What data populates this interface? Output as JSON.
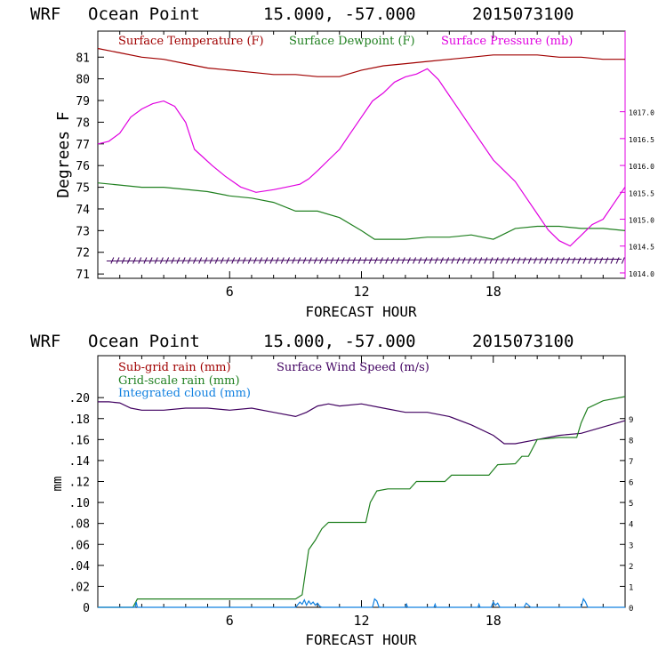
{
  "colors": {
    "dark_red": "#a00000",
    "green": "#208020",
    "magenta": "#e000e0",
    "purple": "#400060",
    "blue": "#1080e0",
    "axis": "#000000"
  },
  "chart_data": [
    {
      "type": "line",
      "title_model": "WRF",
      "title_location": "Ocean Point",
      "title_coords": "15.000, -57.000",
      "title_date": "2015073100",
      "xlabel": "FORECAST HOUR",
      "ylabel": "Degrees F",
      "xlim": [
        0,
        24
      ],
      "ylim": [
        70.8,
        82.2
      ],
      "x_ticks": [
        6,
        12,
        18
      ],
      "y_ticks": [
        71,
        72,
        73,
        74,
        75,
        76,
        77,
        78,
        79,
        80,
        81
      ],
      "y2lim": [
        1013.9,
        1018.5
      ],
      "y2_ticks": [
        "1014.0",
        "1014.5",
        "1015.0",
        "1015.5",
        "1016.0",
        "1016.5",
        "1017.0"
      ],
      "legend": [
        "Surface Temperature (F)",
        "Surface Dewpoint (F)",
        "Surface Pressure (mb)"
      ],
      "series": [
        {
          "name": "Surface Temperature (F)",
          "color": "#a00000",
          "axis": "left",
          "x": [
            0,
            1,
            2,
            3,
            4,
            5,
            6,
            7,
            8,
            9,
            10,
            11,
            12,
            13,
            14,
            15,
            16,
            17,
            18,
            19,
            20,
            21,
            22,
            23,
            24
          ],
          "y": [
            81.4,
            81.2,
            81.0,
            80.9,
            80.7,
            80.5,
            80.4,
            80.3,
            80.2,
            80.2,
            80.1,
            80.1,
            80.4,
            80.6,
            80.7,
            80.8,
            80.9,
            81.0,
            81.1,
            81.1,
            81.1,
            81.0,
            81.0,
            80.9,
            80.9
          ]
        },
        {
          "name": "Surface Dewpoint (F)",
          "color": "#208020",
          "axis": "left",
          "x": [
            0,
            1,
            2,
            3,
            4,
            5,
            6,
            7,
            8,
            9,
            10,
            11,
            12,
            12.6,
            14,
            15,
            16,
            17,
            18,
            19,
            20,
            21,
            22,
            23,
            24
          ],
          "y": [
            75.2,
            75.1,
            75.0,
            75.0,
            74.9,
            74.8,
            74.6,
            74.5,
            74.3,
            73.9,
            73.9,
            73.6,
            73.0,
            72.6,
            72.6,
            72.7,
            72.7,
            72.8,
            72.6,
            73.1,
            73.2,
            73.2,
            73.1,
            73.1,
            73.0
          ]
        },
        {
          "name": "Surface Pressure (mb)",
          "color": "#e000e0",
          "axis": "right",
          "x": [
            0,
            0.5,
            1,
            1.5,
            2,
            2.5,
            3,
            3.5,
            4,
            4.4,
            4.8,
            5.2,
            5.8,
            6.5,
            7.2,
            8,
            8.6,
            9.2,
            9.6,
            10,
            10.5,
            11,
            11.5,
            12,
            12.5,
            13,
            13.5,
            14,
            14.5,
            15,
            15.5,
            16,
            16.5,
            17,
            18,
            18.5,
            19,
            19.5,
            20,
            20.5,
            21,
            21.5,
            22,
            22.5,
            23,
            23.5,
            24
          ],
          "y": [
            1016.4,
            1016.45,
            1016.6,
            1016.9,
            1017.05,
            1017.15,
            1017.2,
            1017.1,
            1016.8,
            1016.3,
            1016.15,
            1016.0,
            1015.8,
            1015.6,
            1015.5,
            1015.55,
            1015.6,
            1015.65,
            1015.75,
            1015.9,
            1016.1,
            1016.3,
            1016.6,
            1016.9,
            1017.2,
            1017.35,
            1017.55,
            1017.65,
            1017.7,
            1017.8,
            1017.6,
            1017.3,
            1017.0,
            1016.7,
            1016.1,
            1015.9,
            1015.7,
            1015.4,
            1015.1,
            1014.8,
            1014.6,
            1014.5,
            1014.7,
            1014.9,
            1015.0,
            1015.3,
            1015.6
          ]
        }
      ],
      "wind_barbs_baseline": 71.6
    },
    {
      "type": "line",
      "title_model": "WRF",
      "title_location": "Ocean Point",
      "title_coords": "15.000, -57.000",
      "title_date": "2015073100",
      "xlabel": "FORECAST HOUR",
      "ylabel": "mm",
      "xlim": [
        0,
        24
      ],
      "ylim": [
        0,
        0.24
      ],
      "x_ticks": [
        6,
        12,
        18
      ],
      "y_ticks": [
        "0",
        ".02",
        ".04",
        ".06",
        ".08",
        ".10",
        ".12",
        ".14",
        ".16",
        ".18",
        ".20"
      ],
      "y_tick_values": [
        0,
        0.02,
        0.04,
        0.06,
        0.08,
        0.1,
        0.12,
        0.14,
        0.16,
        0.18,
        0.2
      ],
      "y2lim": [
        0,
        12
      ],
      "y2_ticks": [
        0,
        1,
        2,
        3,
        4,
        5,
        6,
        7,
        8,
        9
      ],
      "legend": [
        "Sub-grid rain (mm)",
        "Surface Wind Speed (m/s)",
        "Grid-scale rain (mm)",
        "Integrated cloud (mm)"
      ],
      "series": [
        {
          "name": "Surface Wind Speed (m/s)",
          "color": "#400060",
          "axis": "right",
          "x": [
            0,
            0.5,
            1,
            1.5,
            2,
            3,
            4,
            5,
            6,
            7,
            8,
            9,
            9.5,
            10,
            10.5,
            11,
            12,
            13,
            14,
            15,
            16,
            17,
            18,
            18.5,
            19,
            20,
            21,
            22,
            23,
            24
          ],
          "y": [
            9.8,
            9.8,
            9.75,
            9.5,
            9.4,
            9.4,
            9.5,
            9.5,
            9.4,
            9.5,
            9.3,
            9.1,
            9.3,
            9.6,
            9.7,
            9.6,
            9.7,
            9.5,
            9.3,
            9.3,
            9.1,
            8.7,
            8.2,
            7.8,
            7.8,
            8.0,
            8.2,
            8.3,
            8.6,
            8.9
          ]
        },
        {
          "name": "Grid-scale rain (mm)",
          "color": "#208020",
          "axis": "left",
          "x": [
            0,
            1.6,
            1.8,
            8,
            9.0,
            9.3,
            9.6,
            9.9,
            10.2,
            10.5,
            12.2,
            12.4,
            12.7,
            13.2,
            14.2,
            14.5,
            15.8,
            16.1,
            17.8,
            18.2,
            19.0,
            19.3,
            19.6,
            20.0,
            21.0,
            21.8,
            22.0,
            22.3,
            23.0,
            24
          ],
          "y": [
            0,
            0,
            0.008,
            0.008,
            0.008,
            0.012,
            0.055,
            0.064,
            0.075,
            0.081,
            0.081,
            0.1,
            0.111,
            0.113,
            0.113,
            0.12,
            0.12,
            0.126,
            0.126,
            0.136,
            0.137,
            0.144,
            0.144,
            0.16,
            0.162,
            0.162,
            0.176,
            0.19,
            0.197,
            0.201
          ]
        },
        {
          "name": "Integrated cloud (mm)",
          "color": "#1080e0",
          "axis": "left",
          "x": [
            0,
            1.7,
            1.75,
            1.8,
            9.0,
            9.2,
            9.3,
            9.4,
            9.5,
            9.6,
            9.7,
            9.8,
            9.9,
            10.0,
            10.1,
            10.2,
            12.5,
            12.6,
            12.7,
            12.8,
            14.0,
            14.05,
            14.1,
            15.3,
            15.35,
            15.4,
            17.3,
            17.35,
            17.4,
            17.9,
            18.0,
            18.1,
            18.2,
            18.3,
            19.4,
            19.5,
            19.6,
            19.7,
            22.0,
            22.1,
            22.2,
            22.3,
            24
          ],
          "y": [
            0,
            0,
            0.005,
            0,
            0,
            0.005,
            0.003,
            0.007,
            0.002,
            0.006,
            0.003,
            0.005,
            0.002,
            0.004,
            0.001,
            0,
            0,
            0.008,
            0.006,
            0,
            0,
            0.003,
            0,
            0,
            0.003,
            0,
            0,
            0.003,
            0,
            0,
            0.005,
            0.002,
            0.004,
            0,
            0,
            0.004,
            0.002,
            0,
            0,
            0.008,
            0.005,
            0,
            0
          ]
        }
      ]
    }
  ]
}
